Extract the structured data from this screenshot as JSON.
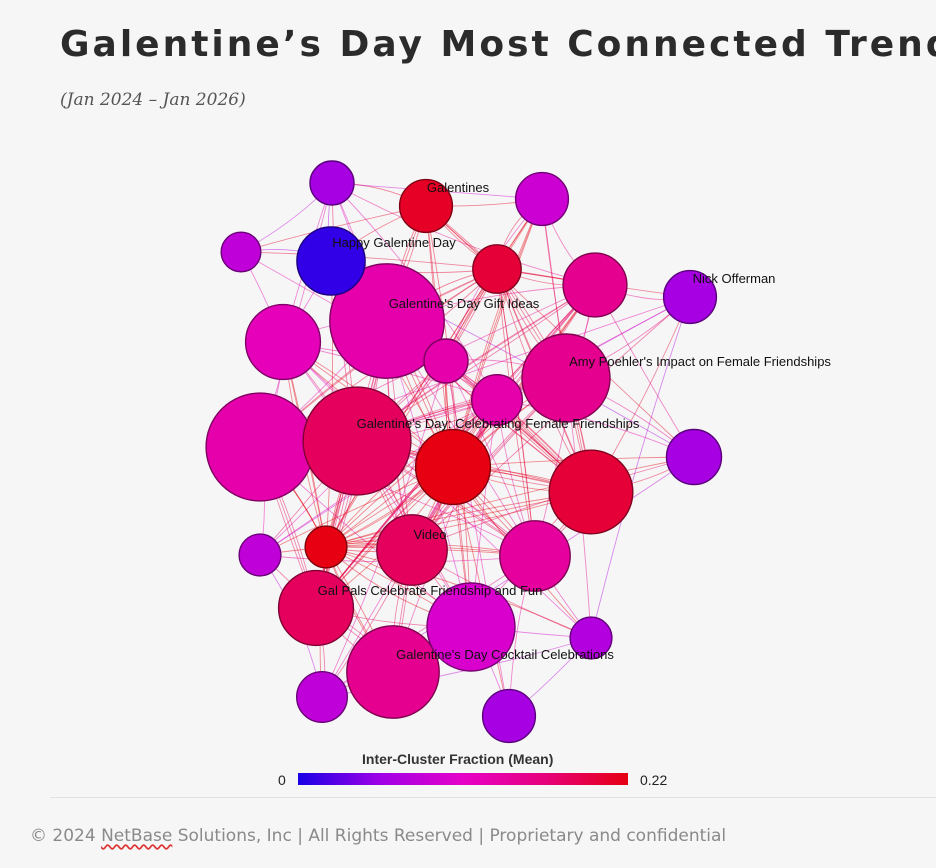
{
  "header": {
    "title": "Galentine’s Day Most Connected Trends",
    "subtitle": "(Jan 2024 – Jan 2026)"
  },
  "legend": {
    "title": "Inter-Cluster Fraction (Mean)",
    "min_label": "0",
    "max_label": "0.22",
    "min_value": 0,
    "max_value": 0.22,
    "colors": [
      "#1a00e6",
      "#a000e6",
      "#e600c8",
      "#e6007a",
      "#e60012"
    ]
  },
  "nodes": [
    {
      "id": "n1",
      "label": "",
      "value": 0.06,
      "size": 1
    },
    {
      "id": "n2",
      "label": "Galentines",
      "value": 0.21,
      "size": 1.2
    },
    {
      "id": "n3",
      "label": "",
      "value": 0.09,
      "size": 1.2
    },
    {
      "id": "n4",
      "label": "",
      "value": 0.08,
      "size": 0.9
    },
    {
      "id": "n5",
      "label": "Happy Galentine Day",
      "value": 0.01,
      "size": 1.55
    },
    {
      "id": "n6",
      "label": "",
      "value": 0.2,
      "size": 1.1
    },
    {
      "id": "n7",
      "label": "",
      "value": 0.12,
      "size": 1.7
    },
    {
      "id": "n8",
      "label": "Nick Offerman",
      "value": 0.06,
      "size": 1.2
    },
    {
      "id": "n9",
      "label": "Galentine's Day Gift Ideas",
      "value": 0.13,
      "size": 2.6
    },
    {
      "id": "n10",
      "label": "",
      "value": 0.15,
      "size": 1.45
    },
    {
      "id": "n11",
      "label": "",
      "value": 0.13,
      "size": 1
    },
    {
      "id": "n12",
      "label": "Amy Poehler's Impact on Female Friendships",
      "value": 0.15,
      "size": 2
    },
    {
      "id": "n13",
      "label": "",
      "value": 0.13,
      "size": 1.15
    },
    {
      "id": "n14",
      "label": "",
      "value": 0.13,
      "size": 2.45
    },
    {
      "id": "n15",
      "label": "Galentine's Day: Celebrating Female Friendships",
      "value": 0.18,
      "size": 2.45
    },
    {
      "id": "n16",
      "label": "",
      "value": 0.22,
      "size": 1.7
    },
    {
      "id": "n17",
      "label": "",
      "value": 0.06,
      "size": 1.25
    },
    {
      "id": "n18",
      "label": "",
      "value": 0.2,
      "size": 1.9
    },
    {
      "id": "n19",
      "label": "",
      "value": 0.08,
      "size": 0.95
    },
    {
      "id": "n20",
      "label": "",
      "value": 0.22,
      "size": 0.95
    },
    {
      "id": "n21",
      "label": "Video",
      "value": 0.18,
      "size": 1.6
    },
    {
      "id": "n22",
      "label": "",
      "value": 0.14,
      "size": 1.6
    },
    {
      "id": "n23",
      "label": "Gal Pals Celebrate Friendship and Fun",
      "value": 0.18,
      "size": 1.7
    },
    {
      "id": "n24",
      "label": "",
      "value": 0.1,
      "size": 2
    },
    {
      "id": "n25",
      "label": "",
      "value": 0.07,
      "size": 0.95
    },
    {
      "id": "n26",
      "label": "Galentine's Day Cocktail Celebrations",
      "value": 0.15,
      "size": 2.1
    },
    {
      "id": "n27",
      "label": "",
      "value": 0.08,
      "size": 1.15
    },
    {
      "id": "n28",
      "label": "",
      "value": 0.06,
      "size": 1.2
    }
  ],
  "footer": {
    "copyright_prefix": "© 2024 ",
    "brand": "NetBase",
    "copyright_suffix": " Solutions, Inc | All Rights Reserved | Proprietary and confidential"
  }
}
